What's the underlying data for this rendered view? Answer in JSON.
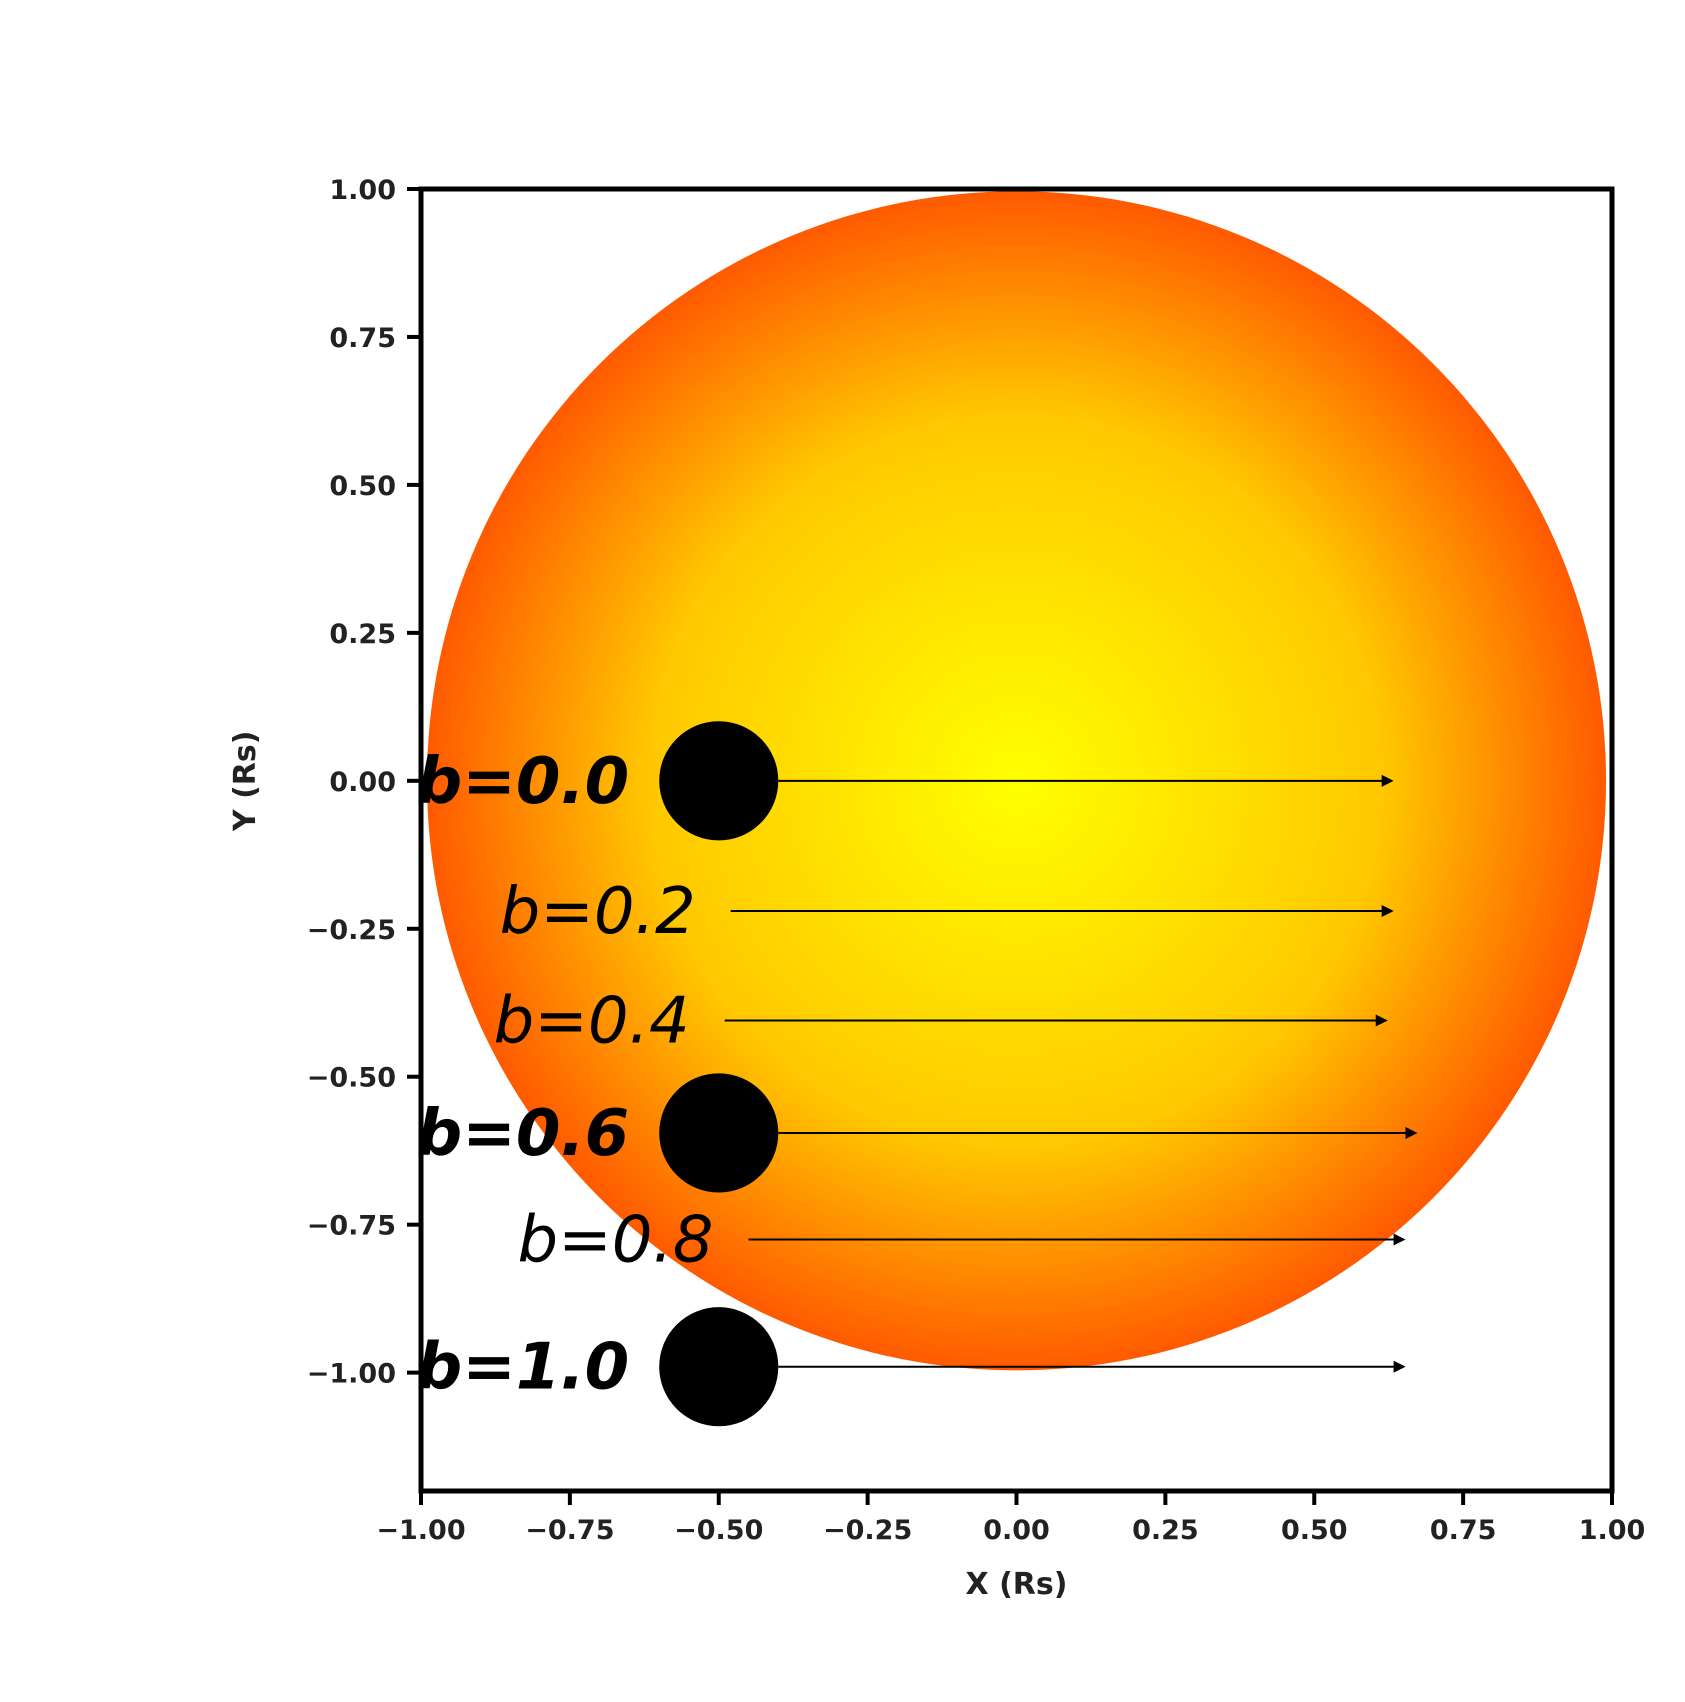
{
  "colors": {
    "star_center": "#ffff00",
    "star_mid": "#ffc800",
    "star_limb": "#ff5a00",
    "planet": "#000000",
    "frame": "#000000"
  },
  "chart_data": {
    "type": "scatter",
    "xlabel": "X (Rs)",
    "ylabel": "Y (Rs)",
    "xlim": [
      -1.0,
      1.0
    ],
    "ylim": [
      -1.2,
      1.0
    ],
    "x_ticks": [
      -1.0,
      -0.75,
      -0.5,
      -0.25,
      0.0,
      0.25,
      0.5,
      0.75,
      1.0
    ],
    "x_tick_labels": [
      "−1.00",
      "−0.75",
      "−0.50",
      "−0.25",
      "0.00",
      "0.25",
      "0.50",
      "0.75",
      "1.00"
    ],
    "y_ticks": [
      1.0,
      0.75,
      0.5,
      0.25,
      0.0,
      -0.25,
      -0.5,
      -0.75,
      -1.0
    ],
    "y_tick_labels": [
      "1.00",
      "0.75",
      "0.50",
      "0.25",
      "0.00",
      "−0.25",
      "−0.50",
      "−0.75",
      "−1.00"
    ],
    "star": {
      "cx": 0.0,
      "cy": 0.0,
      "r": 0.99,
      "limb_darkened": true
    },
    "planet_radius": 0.1,
    "transits": [
      {
        "label": "b=0.0",
        "y": 0.0,
        "bold": true,
        "planet": true,
        "x_start": -0.5,
        "x_end": 0.63
      },
      {
        "label": "b=0.2",
        "y": -0.22,
        "bold": false,
        "planet": false,
        "x_start": -0.48,
        "x_end": 0.63
      },
      {
        "label": "b=0.4",
        "y": -0.405,
        "bold": false,
        "planet": false,
        "x_start": -0.49,
        "x_end": 0.62
      },
      {
        "label": "b=0.6",
        "y": -0.595,
        "bold": true,
        "planet": true,
        "x_start": -0.5,
        "x_end": 0.67
      },
      {
        "label": "b=0.8",
        "y": -0.775,
        "bold": false,
        "planet": false,
        "x_start": -0.45,
        "x_end": 0.65
      },
      {
        "label": "b=1.0",
        "y": -0.99,
        "bold": true,
        "planet": true,
        "x_start": -0.5,
        "x_end": 0.65
      }
    ]
  }
}
